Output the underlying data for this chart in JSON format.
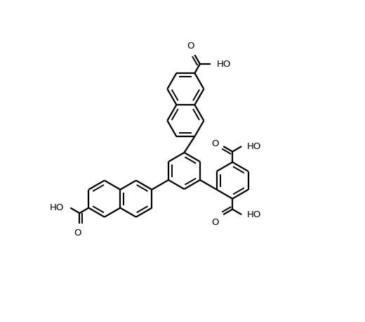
{
  "bg": "#ffffff",
  "lc": "#000000",
  "lw": 1.6,
  "lw2": 1.4,
  "fs": 9.5,
  "R": 0.52,
  "fig_w": 5.2,
  "fig_h": 4.58,
  "dpi": 100,
  "xlim": [
    0,
    10
  ],
  "ylim": [
    0,
    9.16
  ]
}
